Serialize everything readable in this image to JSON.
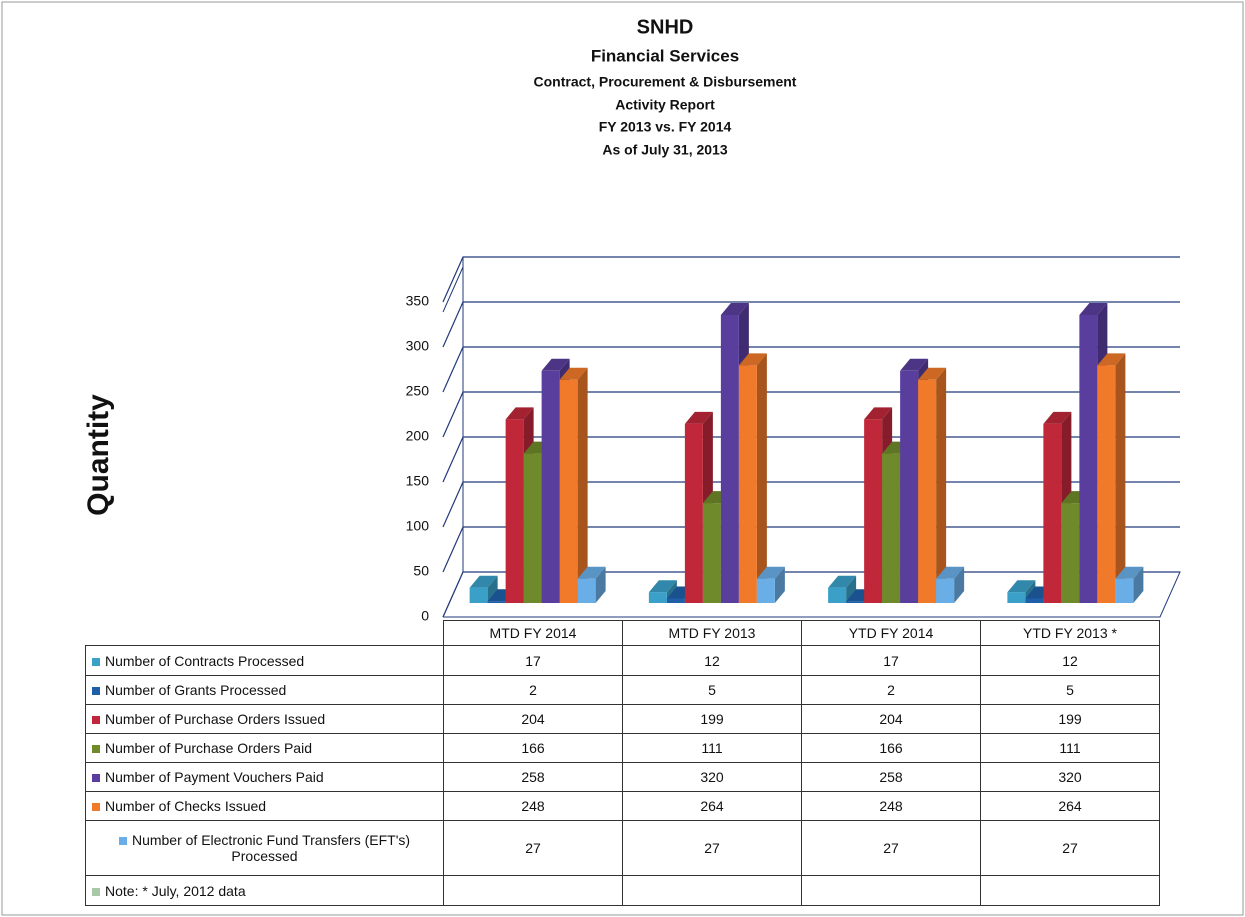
{
  "chart_data": {
    "type": "bar3d",
    "title": "SNHD",
    "subtitle_lines": [
      "Financial Services",
      "Contract, Procurement & Disbursement",
      "Activity Report",
      "FY 2013 vs. FY 2014",
      "As of July 31, 2013"
    ],
    "y_label": "Quantity",
    "categories": [
      "MTD FY 2014",
      "MTD FY 2013",
      "YTD FY 2014",
      "YTD FY 2013 *"
    ],
    "series": [
      {
        "name": "Number of Contracts Processed",
        "color": "#3aa0c8",
        "values": [
          17,
          12,
          17,
          12
        ]
      },
      {
        "name": "Number of Grants Processed",
        "color": "#1f5fa8",
        "values": [
          2,
          5,
          2,
          5
        ]
      },
      {
        "name": "Number of Purchase Orders Issued",
        "color": "#c0283a",
        "values": [
          204,
          199,
          204,
          199
        ]
      },
      {
        "name": "Number of Purchase Orders Paid",
        "color": "#6f8a2a",
        "values": [
          166,
          111,
          166,
          111
        ]
      },
      {
        "name": "Number of Payment Vouchers Paid",
        "color": "#5a3e9e",
        "values": [
          258,
          320,
          258,
          320
        ]
      },
      {
        "name": "Number of Checks Issued",
        "color": "#f07a2a",
        "values": [
          248,
          264,
          248,
          264
        ]
      },
      {
        "name": "Number of Electronic Fund Transfers (EFT's) Processed",
        "color": "#6aaee8",
        "values": [
          27,
          27,
          27,
          27
        ]
      }
    ],
    "note": {
      "name": "Note: * July, 2012 data",
      "color": "#a8c8a8"
    },
    "ylim": [
      0,
      350
    ],
    "yticks": [
      0,
      50,
      100,
      150,
      200,
      250,
      300,
      350
    ],
    "grid": true
  }
}
